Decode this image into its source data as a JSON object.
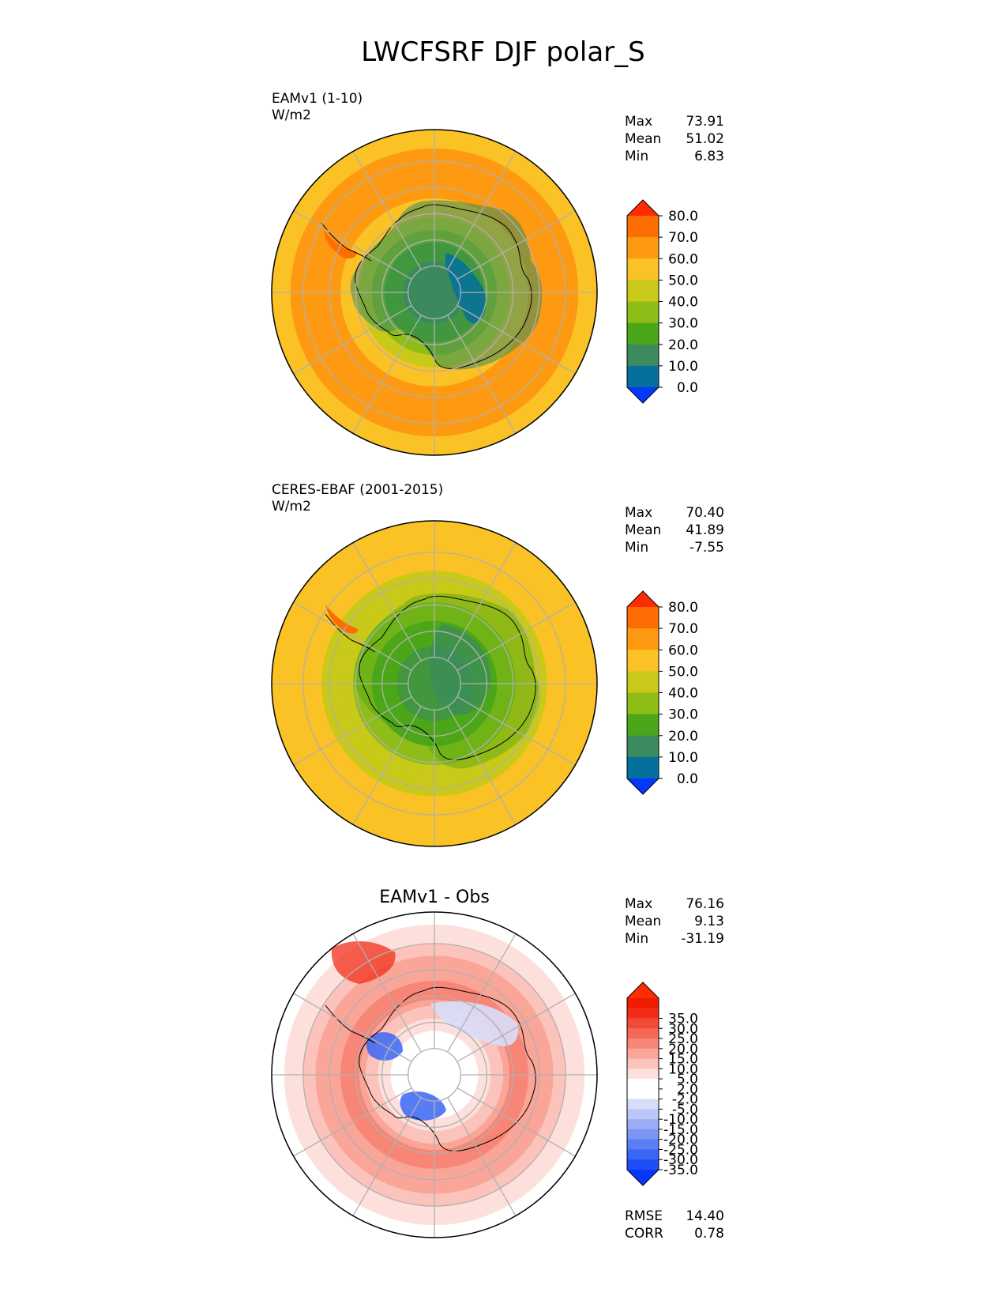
{
  "figure_title": "LWCFSRF DJF polar_S",
  "chart_data": [
    {
      "type": "heatmap",
      "projection": "south-polar-stereographic",
      "title": "",
      "label": "EAMv1 (1-10)",
      "units": "W/m2",
      "stats": {
        "labels": [
          "Max",
          "Mean",
          "Min"
        ],
        "values": [
          "73.91",
          "51.02",
          "6.83"
        ]
      },
      "colorbar": {
        "colors": [
          "#0637ff",
          "#05709e",
          "#3b8b5e",
          "#4ba619",
          "#8fbd17",
          "#c8c919",
          "#fbc226",
          "#fd9a12",
          "#fd6d03",
          "#fe2d01"
        ],
        "tick_labels": [
          "0.0",
          "10.0",
          "20.0",
          "30.0",
          "40.0",
          "50.0",
          "60.0",
          "70.0",
          "80.0"
        ]
      },
      "field_profile": [
        {
          "colat": 0,
          "value": 15
        },
        {
          "colat": 10,
          "value": 17
        },
        {
          "colat": 20,
          "value": 25
        },
        {
          "colat": 26,
          "value": 38
        },
        {
          "colat": 31,
          "value": 52
        },
        {
          "colat": 40,
          "value": 62
        },
        {
          "colat": 58,
          "value": 61
        },
        {
          "colat": 65,
          "value": 55
        }
      ]
    },
    {
      "type": "heatmap",
      "projection": "south-polar-stereographic",
      "title": "",
      "label": "CERES-EBAF (2001-2015)",
      "units": "W/m2",
      "stats": {
        "labels": [
          "Max",
          "Mean",
          "Min"
        ],
        "values": [
          "70.40",
          "41.89",
          "-7.55"
        ]
      },
      "colorbar": {
        "colors": [
          "#0637ff",
          "#05709e",
          "#3b8b5e",
          "#4ba619",
          "#8fbd17",
          "#c8c919",
          "#fbc226",
          "#fd9a12",
          "#fd6d03",
          "#fe2d01"
        ],
        "tick_labels": [
          "0.0",
          "10.0",
          "20.0",
          "30.0",
          "40.0",
          "50.0",
          "60.0",
          "70.0",
          "80.0"
        ]
      },
      "field_profile": [
        {
          "colat": 0,
          "value": 15
        },
        {
          "colat": 12,
          "value": 16
        },
        {
          "colat": 22,
          "value": 26
        },
        {
          "colat": 30,
          "value": 35
        },
        {
          "colat": 40,
          "value": 45
        },
        {
          "colat": 52,
          "value": 53
        },
        {
          "colat": 65,
          "value": 56
        }
      ]
    },
    {
      "type": "heatmap",
      "projection": "south-polar-stereographic",
      "title": "EAMv1 - Obs",
      "label": "",
      "units": "",
      "stats": {
        "labels": [
          "Max",
          "Mean",
          "Min"
        ],
        "values": [
          "76.16",
          "9.13",
          "-31.19"
        ]
      },
      "metrics": {
        "labels": [
          "RMSE",
          "CORR"
        ],
        "values": [
          "14.40",
          "0.78"
        ]
      },
      "colorbar": {
        "colors": [
          "#0637ff",
          "#1f4ef7",
          "#3a66f5",
          "#5a7ef3",
          "#7a95f2",
          "#9aadf4",
          "#b9c6f7",
          "#d8def9",
          "#ffffff",
          "#ffffff",
          "#fde0dc",
          "#fbc3bb",
          "#f9a597",
          "#f78677",
          "#f56857",
          "#f34a36",
          "#f12d19",
          "#ef1d00",
          "#fe2d01"
        ],
        "tick_labels": [
          "-35.0",
          "-30.0",
          "-25.0",
          "-20.0",
          "-15.0",
          "-10.0",
          "-5.0",
          "-2.0",
          "2.0",
          "5.0",
          "10.0",
          "15.0",
          "20.0",
          "25.0",
          "30.0",
          "35.0"
        ]
      },
      "field_profile": [
        {
          "colat": 0,
          "value": 0
        },
        {
          "colat": 14,
          "value": 2
        },
        {
          "colat": 24,
          "value": 10
        },
        {
          "colat": 34,
          "value": 22
        },
        {
          "colat": 44,
          "value": 18
        },
        {
          "colat": 56,
          "value": 8
        },
        {
          "colat": 65,
          "value": 3
        }
      ]
    }
  ]
}
